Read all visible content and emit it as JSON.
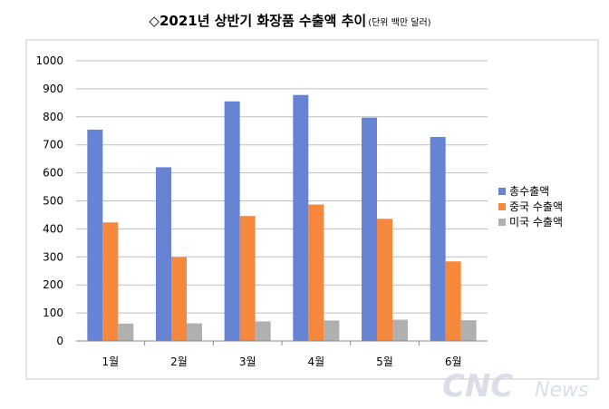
{
  "chart_data": {
    "type": "bar",
    "title": "◇2021년 상반기 화장품 수출액 추이",
    "title_unit": "(단위 백만 달러)",
    "categories": [
      "1월",
      "2월",
      "3월",
      "4월",
      "5월",
      "6월"
    ],
    "series": [
      {
        "name": "총수출액",
        "color": "#6683d4",
        "values": [
          754,
          620,
          855,
          878,
          797,
          728
        ]
      },
      {
        "name": "중국 수출액",
        "color": "#f5883d",
        "values": [
          423,
          299,
          446,
          487,
          436,
          284
        ]
      },
      {
        "name": "미국 수출액",
        "color": "#b0b0b0",
        "values": [
          62,
          63,
          70,
          73,
          76,
          74
        ]
      }
    ],
    "ylim": [
      0,
      1000
    ],
    "yticks": [
      "0",
      "100",
      "200",
      "300",
      "400",
      "500",
      "600",
      "700",
      "800",
      "900",
      "1000"
    ],
    "grid": true,
    "legend_position": "right"
  },
  "watermark": {
    "brand": "CNC",
    "suffix": "News"
  }
}
